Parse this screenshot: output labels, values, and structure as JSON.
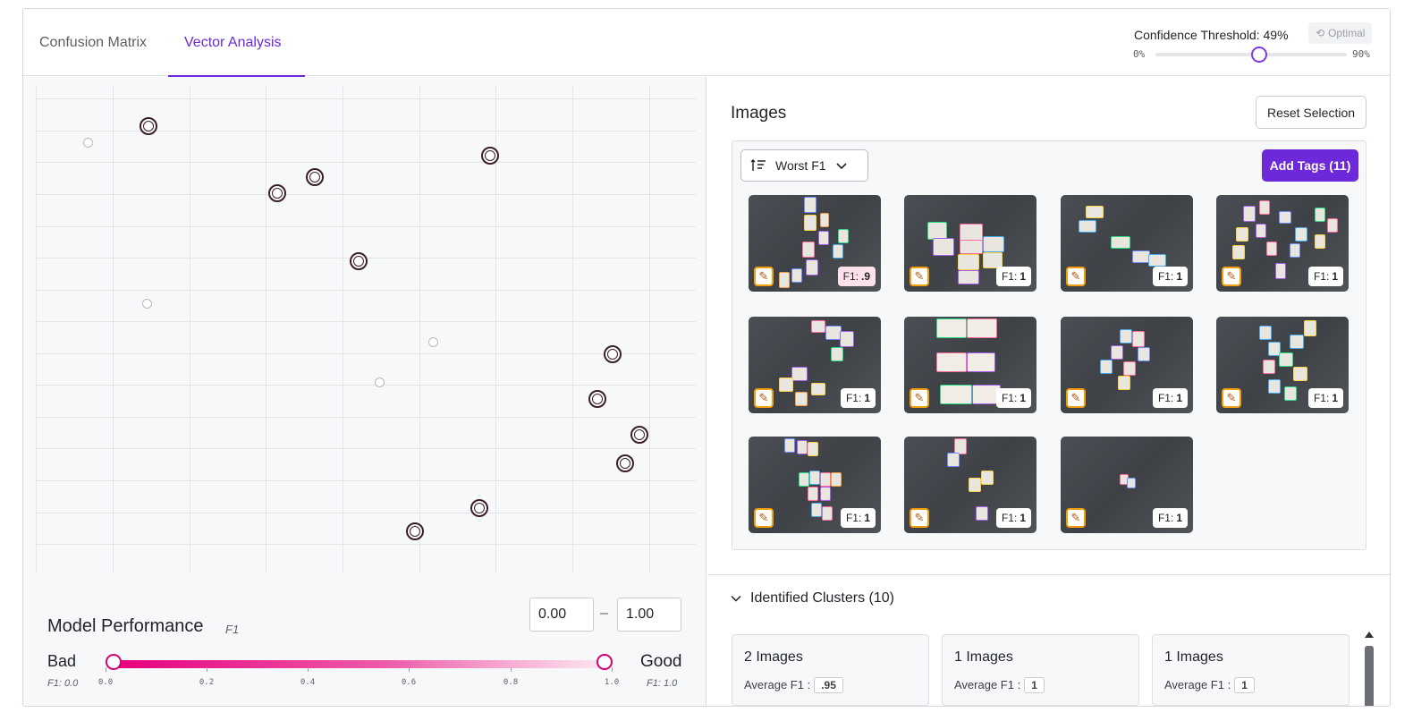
{
  "tabs": [
    {
      "label": "Confusion Matrix"
    },
    {
      "label": "Vector Analysis"
    }
  ],
  "threshold": {
    "label": "Confidence Threshold: 49%",
    "optimal_label": "Optimal",
    "min_label": "0%",
    "max_label": "90%",
    "value": 0.49
  },
  "model_performance": {
    "title": "Model Performance",
    "subtitle": "F1",
    "min_value": "0.00",
    "range_sep": "–",
    "max_value": "1.00",
    "bad_label": "Bad",
    "good_label": "Good",
    "bad_f1": "F1: 0.0",
    "good_f1": "F1: 1.0",
    "ticks": [
      "0.0",
      "0.2",
      "0.4",
      "0.6",
      "0.8",
      "1.0"
    ]
  },
  "images": {
    "title": "Images",
    "reset_label": "Reset Selection",
    "sort_label": "Worst F1",
    "add_tags_label": "Add Tags (11)",
    "f1_prefix": "F1:",
    "items": [
      {
        "f1": ".9"
      },
      {
        "f1": "1"
      },
      {
        "f1": "1"
      },
      {
        "f1": "1"
      },
      {
        "f1": "1"
      },
      {
        "f1": "1"
      },
      {
        "f1": "1"
      },
      {
        "f1": "1"
      },
      {
        "f1": "1"
      },
      {
        "f1": "1"
      },
      {
        "f1": "1"
      }
    ]
  },
  "clusters": {
    "title": "Identified Clusters (10)",
    "avg_label": "Average F1 :",
    "items": [
      {
        "count_label": "2 Images",
        "avg": ".95"
      },
      {
        "count_label": "1 Images",
        "avg": "1"
      },
      {
        "count_label": "1 Images",
        "avg": "1"
      }
    ]
  },
  "colors": {
    "accent": "#6d28d9",
    "bad": "#e6007e",
    "good": "#fde8f2",
    "edit_badge": "#f59e0b"
  },
  "icons": [
    "undo-icon",
    "sort-icon",
    "chevron-down-icon",
    "edit-icon",
    "chevron-down-icon",
    "scroll-up-icon"
  ]
}
